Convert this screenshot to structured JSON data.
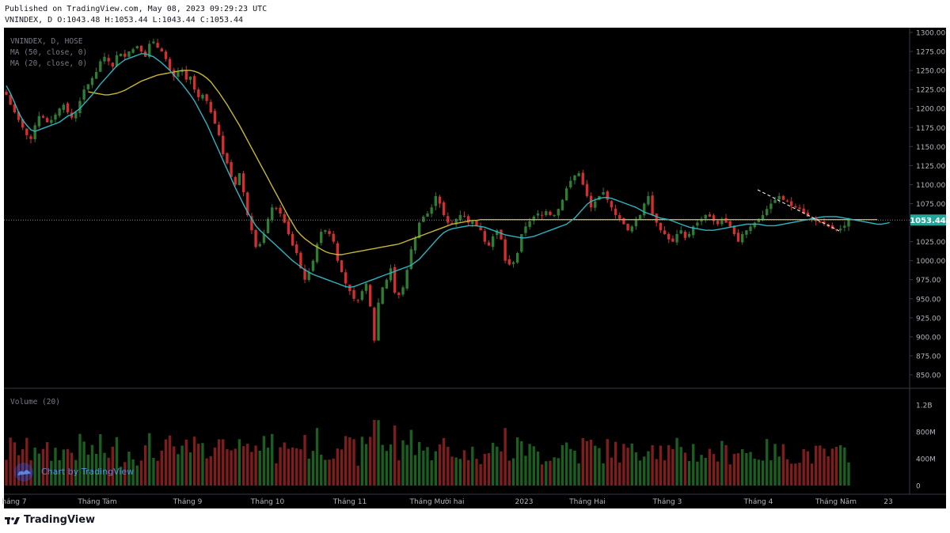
{
  "header": {
    "published": "Published on TradingView.com, May 08, 2023 09:29:23 UTC",
    "ohlc": "VNINDEX, D O:1043.48 H:1053.44 L:1043.44 C:1053.44"
  },
  "legend": {
    "symbol": "VNINDEX, D, HOSE",
    "ma50": "MA (50, close, 0)",
    "ma20": "MA (20, close, 0)",
    "volume": "Volume (20)"
  },
  "watermark": "Chart by TradingView",
  "footer_brand": "TradingView",
  "colors": {
    "background": "#000000",
    "up": "#2e7d32",
    "down": "#d32f2f",
    "vol_up": "#1b5e20",
    "vol_down": "#7f1d1d",
    "ma50": "#c8b830",
    "ma20": "#2ab6c4",
    "axis_text": "#b2b5be",
    "price_tag": "#26a69a"
  },
  "chart_data": {
    "type": "candlestick",
    "price_axis": {
      "min": 850,
      "max": 1300,
      "ticks": [
        850,
        875,
        900,
        925,
        950,
        975,
        1000,
        1025,
        1050,
        1075,
        1100,
        1125,
        1150,
        1175,
        1200,
        1225,
        1250,
        1275,
        1300
      ]
    },
    "volume_axis": {
      "labels": [
        "1.2B",
        "800M",
        "400M",
        "0"
      ],
      "values": [
        1200,
        800,
        400,
        0
      ],
      "unit": "M"
    },
    "last_price": "1053.44",
    "months": [
      "háng 7",
      "Tháng Tám",
      "Tháng 9",
      "Tháng 10",
      "Tháng 11",
      "Tháng Mười hai",
      "2023",
      "Tháng Hai",
      "Tháng 3",
      "Tháng 4",
      "Tháng Năm",
      "23"
    ],
    "closes": [
      1218,
      1205,
      1195,
      1185,
      1175,
      1165,
      1160,
      1178,
      1190,
      1188,
      1182,
      1185,
      1192,
      1200,
      1205,
      1195,
      1188,
      1195,
      1210,
      1225,
      1232,
      1240,
      1248,
      1262,
      1268,
      1262,
      1255,
      1270,
      1272,
      1268,
      1275,
      1278,
      1282,
      1275,
      1268,
      1285,
      1288,
      1280,
      1275,
      1265,
      1250,
      1242,
      1248,
      1250,
      1238,
      1242,
      1225,
      1215,
      1218,
      1210,
      1195,
      1180,
      1165,
      1140,
      1128,
      1110,
      1100,
      1115,
      1090,
      1060,
      1040,
      1018,
      1022,
      1035,
      1055,
      1070,
      1068,
      1062,
      1050,
      1035,
      1020,
      1010,
      990,
      975,
      985,
      1000,
      1022,
      1038,
      1040,
      1035,
      1025,
      1000,
      985,
      970,
      960,
      950,
      948,
      960,
      970,
      940,
      895,
      945,
      965,
      975,
      990,
      958,
      955,
      965,
      988,
      1015,
      1030,
      1050,
      1058,
      1062,
      1070,
      1085,
      1075,
      1060,
      1050,
      1048,
      1055,
      1060,
      1058,
      1050,
      1052,
      1045,
      1040,
      1025,
      1020,
      1032,
      1040,
      1028,
      1000,
      995,
      998,
      1010,
      1035,
      1045,
      1052,
      1058,
      1062,
      1060,
      1065,
      1060,
      1060,
      1068,
      1080,
      1095,
      1105,
      1112,
      1115,
      1100,
      1085,
      1070,
      1078,
      1085,
      1090,
      1080,
      1070,
      1060,
      1055,
      1048,
      1040,
      1045,
      1055,
      1060,
      1075,
      1085,
      1060,
      1050,
      1040,
      1035,
      1028,
      1025,
      1035,
      1040,
      1030,
      1035,
      1045,
      1050,
      1055,
      1060,
      1058,
      1052,
      1048,
      1055,
      1050,
      1045,
      1035,
      1025,
      1035,
      1040,
      1045,
      1050,
      1055,
      1060,
      1068,
      1075,
      1080,
      1085,
      1080,
      1078,
      1072,
      1070,
      1068,
      1062,
      1058,
      1055,
      1052,
      1050,
      1048,
      1045,
      1042,
      1040,
      1042,
      1046,
      1053.44
    ],
    "ma20": [
      1230,
      1220,
      1208,
      1195,
      1185,
      1178,
      1172,
      1170,
      1172,
      1174,
      1176,
      1178,
      1180,
      1182,
      1186,
      1190,
      1192,
      1196,
      1200,
      1206,
      1212,
      1218,
      1225,
      1232,
      1238,
      1244,
      1250,
      1256,
      1260,
      1264,
      1266,
      1268,
      1270,
      1272,
      1272,
      1270,
      1268,
      1264,
      1260,
      1255,
      1250,
      1244,
      1238,
      1232,
      1225,
      1218,
      1210,
      1200,
      1190,
      1180,
      1168,
      1156,
      1144,
      1132,
      1120,
      1108,
      1096,
      1085,
      1074,
      1064,
      1055,
      1046,
      1040,
      1035,
      1030,
      1025,
      1020,
      1015,
      1010,
      1005,
      1000,
      996,
      992,
      988,
      985,
      982,
      980,
      978,
      976,
      974,
      972,
      970,
      968,
      966,
      965,
      966,
      968,
      970,
      972,
      974,
      976,
      978,
      980,
      982,
      984,
      986,
      988,
      990,
      992,
      994,
      998,
      1002,
      1008,
      1014,
      1020,
      1026,
      1032,
      1037,
      1040,
      1042,
      1043,
      1044,
      1045,
      1046,
      1046,
      1046,
      1045,
      1044,
      1042,
      1040,
      1038,
      1036,
      1034,
      1033,
      1032,
      1031,
      1030,
      1030,
      1031,
      1032,
      1034,
      1036,
      1038,
      1040,
      1042,
      1044,
      1046,
      1048,
      1052,
      1056,
      1062,
      1068,
      1074,
      1078,
      1080,
      1082,
      1083,
      1083,
      1082,
      1080,
      1078,
      1076,
      1074,
      1072,
      1070,
      1067,
      1064,
      1062,
      1060,
      1058,
      1056,
      1055,
      1054,
      1052,
      1050,
      1048,
      1046,
      1044,
      1043,
      1042,
      1041,
      1040,
      1040,
      1040,
      1041,
      1042,
      1043,
      1044,
      1045,
      1046,
      1047,
      1048,
      1048,
      1048,
      1048,
      1047,
      1046,
      1046,
      1046,
      1047,
      1048,
      1049,
      1050,
      1051,
      1052,
      1053,
      1054,
      1055,
      1056,
      1057,
      1058,
      1058,
      1058,
      1058,
      1057,
      1056,
      1055,
      1054,
      1053,
      1052,
      1051,
      1050,
      1049,
      1048,
      1048,
      1049,
      1050
    ],
    "ma50": [
      null,
      null,
      null,
      null,
      null,
      null,
      null,
      null,
      null,
      null,
      null,
      null,
      null,
      null,
      null,
      null,
      null,
      null,
      null,
      null,
      1222,
      1221,
      1220,
      1219,
      1218,
      1218,
      1219,
      1220,
      1222,
      1224,
      1227,
      1230,
      1233,
      1236,
      1238,
      1240,
      1242,
      1244,
      1245,
      1246,
      1247,
      1248,
      1249,
      1250,
      1250,
      1250,
      1249,
      1247,
      1244,
      1240,
      1235,
      1228,
      1221,
      1213,
      1205,
      1196,
      1187,
      1178,
      1168,
      1158,
      1148,
      1138,
      1128,
      1118,
      1108,
      1098,
      1088,
      1078,
      1068,
      1058,
      1049,
      1040,
      1034,
      1029,
      1025,
      1021,
      1018,
      1015,
      1012,
      1010,
      1009,
      1008,
      1008,
      1009,
      1010,
      1011,
      1012,
      1013,
      1014,
      1015,
      1016,
      1017,
      1018,
      1019,
      1020,
      1021,
      1022,
      1024,
      1026,
      1028,
      1030,
      1032,
      1034,
      1036,
      1038,
      1040,
      1042,
      1044,
      1046,
      1048,
      1049,
      1050,
      1051,
      1052,
      1053,
      1053,
      1054,
      1054,
      1054,
      1054,
      1054,
      1054,
      1054,
      1054,
      1054,
      1054,
      1054,
      1054,
      1054,
      1054,
      1054,
      1054,
      1054,
      1054,
      1054,
      1054,
      1054,
      1054,
      1054,
      1054,
      1054,
      1054,
      1054,
      1054,
      1054,
      1054,
      1054,
      1054,
      1054,
      1054,
      1054,
      1054,
      1054,
      1054,
      1054,
      1054,
      1054,
      1054,
      1054,
      1054,
      1054,
      1054,
      1054,
      1054,
      1054,
      1054,
      1054,
      1054,
      1054,
      1054,
      1054,
      1054,
      1054,
      1054,
      1054,
      1054,
      1054,
      1054,
      1054,
      1054,
      1054,
      1054,
      1054,
      1054,
      1054,
      1054,
      1054,
      1054,
      1054,
      1054,
      1054,
      1054,
      1054,
      1054,
      1054,
      1054,
      1054,
      1054,
      1054,
      1054,
      1054,
      1054,
      1054,
      1054,
      1054,
      1054,
      1054,
      1054,
      1054,
      1054,
      1054,
      1054,
      1054,
      1054
    ]
  }
}
